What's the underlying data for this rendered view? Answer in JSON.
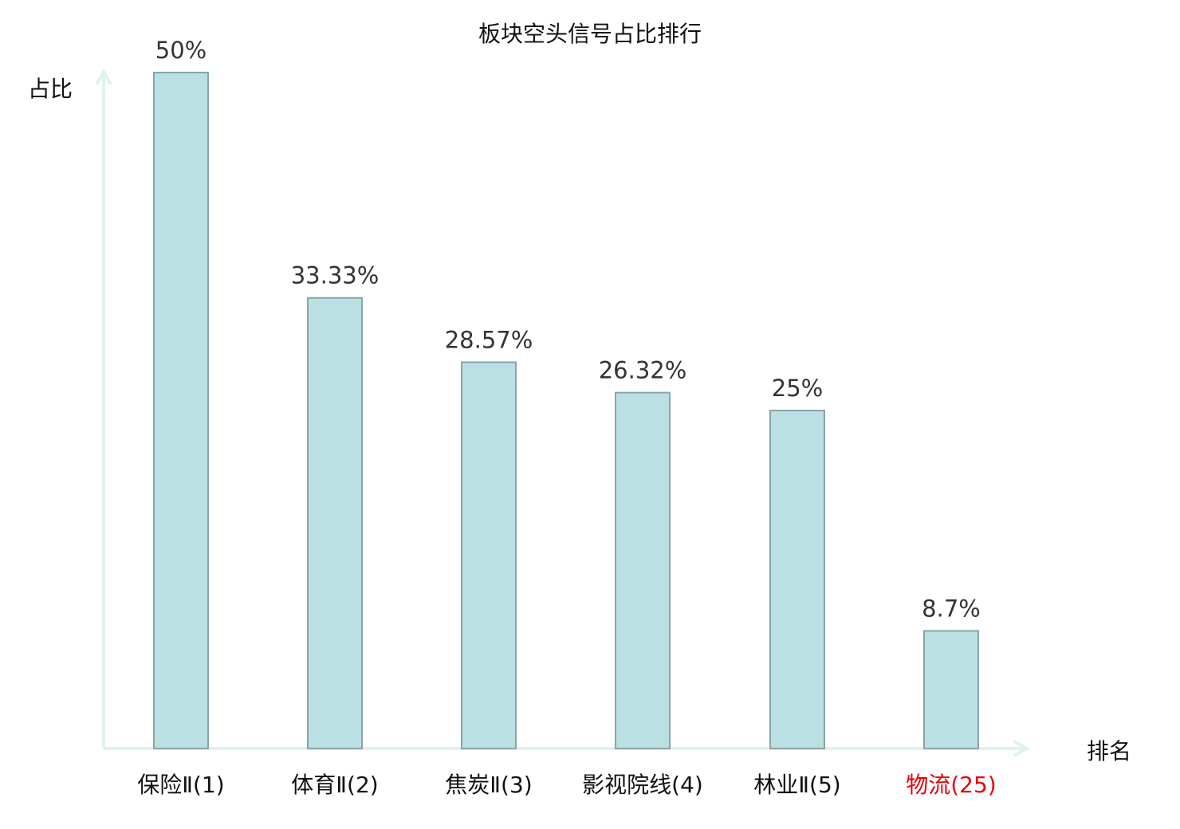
{
  "chart_data": {
    "type": "bar",
    "title": "板块空头信号占比排行",
    "xlabel": "排名",
    "ylabel": "占比",
    "categories": [
      "保险Ⅱ(1)",
      "体育Ⅱ(2)",
      "焦炭Ⅱ(3)",
      "影视院线(4)",
      "林业Ⅱ(5)",
      "物流(25)"
    ],
    "values": [
      50,
      33.33,
      28.57,
      26.32,
      25,
      8.7
    ],
    "data_labels": [
      "50%",
      "33.33%",
      "28.57%",
      "26.32%",
      "25%",
      "8.7%"
    ],
    "highlighted_category_index": 5,
    "ylim": [
      0,
      50
    ],
    "grid": false,
    "colors": {
      "bar_fill": "#bbe0e3",
      "bar_stroke": "#87a5a8",
      "axis": "#dff2ef",
      "highlight_label": "#e8000b",
      "label": "#111111",
      "data_label": "#333333"
    }
  }
}
